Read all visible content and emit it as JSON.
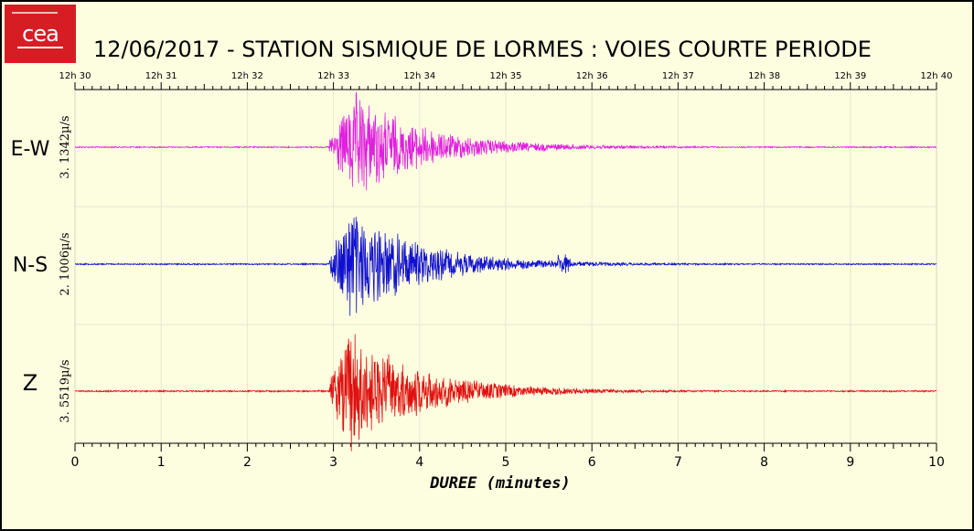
{
  "title": "12/06/2017  -  STATION SISMIQUE DE LORMES : VOIES COURTE PERIODE",
  "logo_text": "cea",
  "chart_data": {
    "type": "line",
    "title": "12/06/2017  -  STATION SISMIQUE DE LORMES : VOIES COURTE PERIODE",
    "xlabel": "DUREE (minutes)",
    "xlim": [
      0,
      10
    ],
    "x_ticks": [
      "0",
      "1",
      "2",
      "3",
      "4",
      "5",
      "6",
      "7",
      "8",
      "9",
      "10"
    ],
    "top_time_ticks": [
      "12h 30",
      "12h 31",
      "12h 32",
      "12h 33",
      "12h 34",
      "12h 35",
      "12h 36",
      "12h 37",
      "12h 38",
      "12h 39",
      "12h 40"
    ],
    "event_onset_minutes": 2.95,
    "series": [
      {
        "name": "E-W",
        "scale_label": "3. 1342µ/s",
        "color": "#e020e0",
        "peak_minutes": 3.25
      },
      {
        "name": "N-S",
        "scale_label": "2. 1006µ/s",
        "color": "#1010d0",
        "peak_minutes": 3.2
      },
      {
        "name": "Z",
        "scale_label": "3. 5519µ/s",
        "color": "#e01010",
        "peak_minutes": 3.2
      }
    ],
    "grid": true
  }
}
